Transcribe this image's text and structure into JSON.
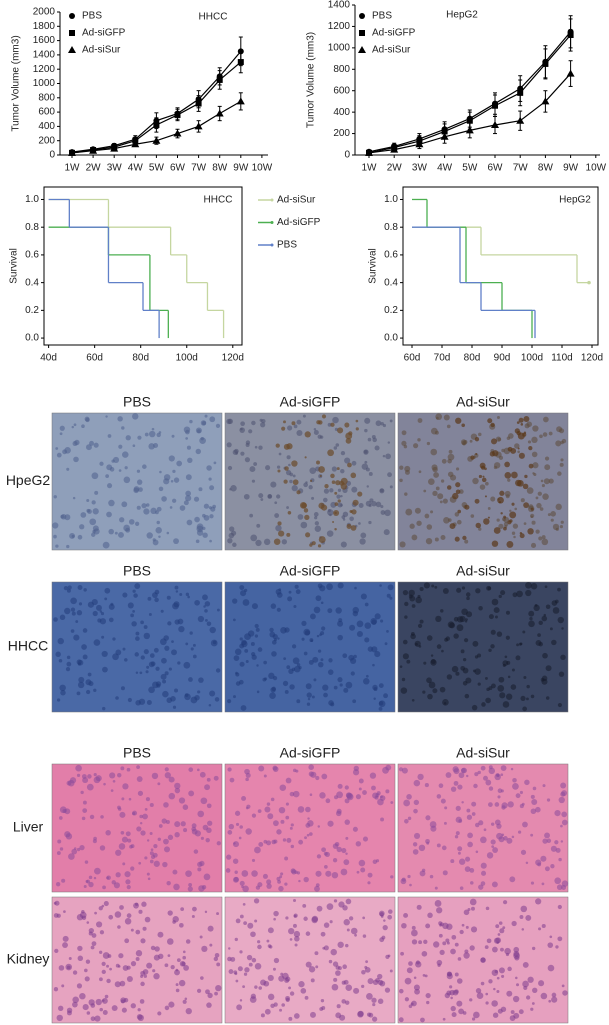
{
  "chart_data": [
    {
      "type": "line",
      "title": "HHCC",
      "ylabel": "Tumor Volume (mm3)",
      "legend": "upper left",
      "frame": false,
      "categories": [
        "1W",
        "2W",
        "3W",
        "4W",
        "5W",
        "6W",
        "7W",
        "8W",
        "9W",
        "10W"
      ],
      "ylim": [
        0,
        2000
      ],
      "yticks": [
        0,
        200,
        400,
        600,
        800,
        1000,
        1200,
        1400,
        1600,
        1800,
        2000
      ],
      "series": [
        {
          "name": "PBS",
          "color": "#000000",
          "marker": "circle",
          "values": [
            40,
            80,
            130,
            220,
            480,
            580,
            780,
            1100,
            1450,
            null
          ],
          "errors": [
            10,
            20,
            30,
            50,
            110,
            80,
            120,
            120,
            200,
            null
          ]
        },
        {
          "name": "Ad-siGFP",
          "color": "#000000",
          "marker": "square",
          "values": [
            30,
            70,
            110,
            200,
            420,
            560,
            720,
            1050,
            1300,
            null
          ],
          "errors": [
            10,
            20,
            25,
            40,
            100,
            80,
            110,
            130,
            150,
            null
          ]
        },
        {
          "name": "Ad-siSur",
          "color": "#000000",
          "marker": "triangle",
          "values": [
            30,
            60,
            90,
            150,
            200,
            300,
            400,
            580,
            750,
            null
          ],
          "errors": [
            10,
            15,
            20,
            30,
            50,
            60,
            80,
            100,
            120,
            null
          ]
        }
      ]
    },
    {
      "type": "line",
      "title": "HepG2",
      "ylabel": "Tumor Volume (mm3)",
      "legend": "upper left",
      "frame": false,
      "categories": [
        "1W",
        "2W",
        "3W",
        "4W",
        "5W",
        "6W",
        "7W",
        "8W",
        "9W",
        "10W"
      ],
      "ylim": [
        0,
        1400
      ],
      "yticks": [
        0,
        200,
        400,
        600,
        800,
        1000,
        1200,
        1400
      ],
      "series": [
        {
          "name": "PBS",
          "color": "#000000",
          "marker": "circle",
          "values": [
            30,
            80,
            150,
            240,
            340,
            480,
            620,
            870,
            1150,
            null
          ],
          "errors": [
            10,
            30,
            50,
            70,
            80,
            100,
            120,
            150,
            150,
            null
          ]
        },
        {
          "name": "Ad-siGFP",
          "color": "#000000",
          "marker": "square",
          "values": [
            20,
            70,
            130,
            220,
            320,
            460,
            580,
            850,
            1120,
            null
          ],
          "errors": [
            10,
            30,
            50,
            70,
            80,
            100,
            120,
            140,
            150,
            null
          ]
        },
        {
          "name": "Ad-siSur",
          "color": "#000000",
          "marker": "triangle",
          "values": [
            20,
            50,
            100,
            170,
            230,
            280,
            320,
            500,
            760,
            null
          ],
          "errors": [
            10,
            20,
            40,
            60,
            70,
            80,
            90,
            100,
            120,
            null
          ]
        }
      ]
    },
    {
      "type": "step",
      "title": "HHCC",
      "ylabel": "Survival",
      "legend": "right",
      "frame": true,
      "xlim": [
        38,
        124
      ],
      "xticks": [
        {
          "value": 40,
          "label": "40d"
        },
        {
          "value": 60,
          "label": "60d"
        },
        {
          "value": 80,
          "label": "80d"
        },
        {
          "value": 100,
          "label": "100d"
        },
        {
          "value": 120,
          "label": "120d"
        }
      ],
      "ylim": [
        -0.05,
        1.09
      ],
      "yticks": [
        {
          "value": 0,
          "label": "0.0"
        },
        {
          "value": 0.2,
          "label": "0.2"
        },
        {
          "value": 0.4,
          "label": "0.4"
        },
        {
          "value": 0.6,
          "label": "0.6"
        },
        {
          "value": 0.8,
          "label": "0.8"
        },
        {
          "value": 1,
          "label": "1.0"
        }
      ],
      "series": [
        {
          "name": "Ad-siSur",
          "color": "#c5d6a0",
          "x": [
            40,
            66,
            93,
            100,
            109,
            116
          ],
          "values": [
            1.0,
            0.8,
            0.6,
            0.4,
            0.2,
            0.0
          ]
        },
        {
          "name": "Ad-siGFP",
          "color": "#4caf50",
          "x": [
            40,
            66,
            84,
            92
          ],
          "values": [
            0.8,
            0.6,
            0.2,
            0.0
          ]
        },
        {
          "name": "PBS",
          "color": "#6080c8",
          "x": [
            40,
            49,
            66,
            81,
            88
          ],
          "values": [
            1.0,
            0.8,
            0.4,
            0.2,
            0.0
          ]
        }
      ]
    },
    {
      "type": "step",
      "title": "HepG2",
      "ylabel": "Survival",
      "legend": false,
      "frame": true,
      "xlim": [
        57,
        122
      ],
      "xticks": [
        {
          "value": 60,
          "label": "60d"
        },
        {
          "value": 70,
          "label": "70d"
        },
        {
          "value": 80,
          "label": "80d"
        },
        {
          "value": 90,
          "label": "90d"
        },
        {
          "value": 100,
          "label": "100d"
        },
        {
          "value": 110,
          "label": "110d"
        },
        {
          "value": 120,
          "label": "120d"
        }
      ],
      "ylim": [
        -0.05,
        1.09
      ],
      "yticks": [
        {
          "value": 0,
          "label": "0.0"
        },
        {
          "value": 0.2,
          "label": "0.2"
        },
        {
          "value": 0.4,
          "label": "0.4"
        },
        {
          "value": 0.6,
          "label": "0.6"
        },
        {
          "value": 0.8,
          "label": "0.8"
        },
        {
          "value": 1,
          "label": "1.0"
        }
      ],
      "series": [
        {
          "color": "#c5d6a0",
          "x": [
            60,
            83,
            115,
            119
          ],
          "values": [
            0.8,
            0.6,
            0.4,
            0.4
          ]
        },
        {
          "color": "#4caf50",
          "x": [
            60,
            65,
            78,
            90,
            100
          ],
          "values": [
            1.0,
            0.8,
            0.4,
            0.2,
            0.0
          ]
        },
        {
          "color": "#6080c8",
          "x": [
            60,
            76,
            83,
            101
          ],
          "values": [
            0.8,
            0.4,
            0.2,
            0.0
          ]
        }
      ]
    }
  ],
  "panels": [
    {
      "columns": [
        "PBS",
        "Ad-siGFP",
        "Ad-siSur"
      ],
      "rows": [
        "HpeG2"
      ]
    },
    {
      "columns": [
        "PBS",
        "Ad-siGFP",
        "Ad-siSur"
      ],
      "rows": [
        "HHCC"
      ]
    },
    {
      "columns": [
        "PBS",
        "Ad-siGFP",
        "Ad-siSur"
      ],
      "rows": [
        "Liver",
        "Kidney"
      ]
    }
  ]
}
